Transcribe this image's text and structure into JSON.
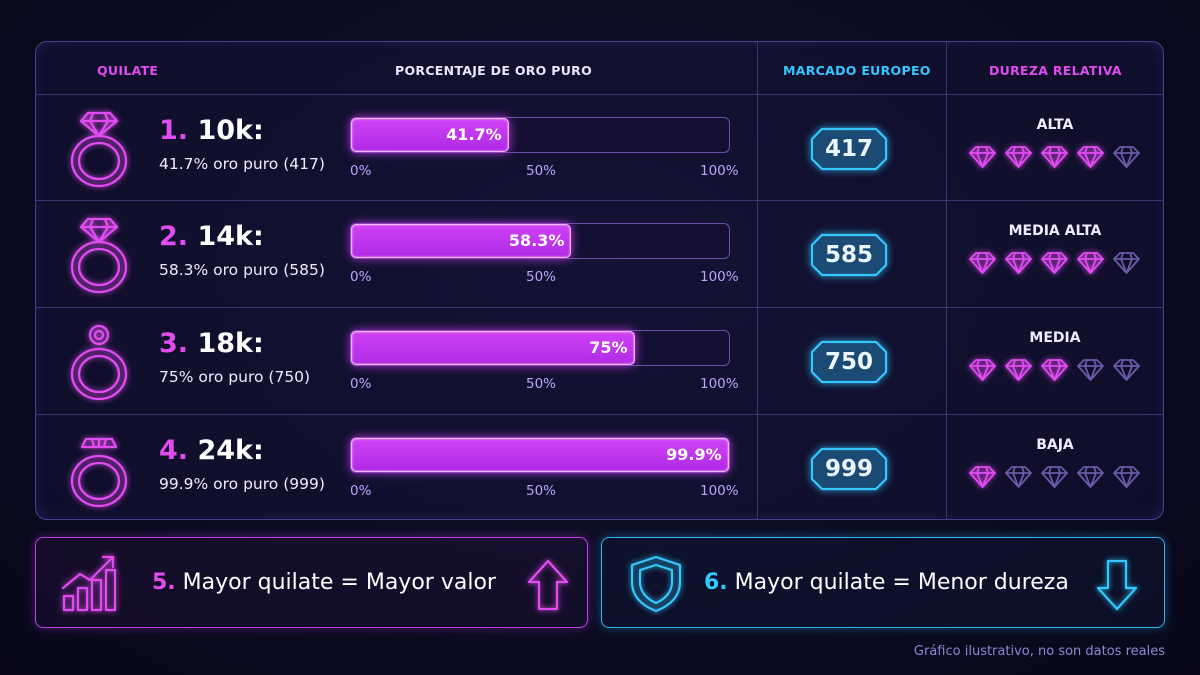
{
  "colors": {
    "pink": "#e04cf0",
    "cyan": "#35c8ff",
    "panel_border": "#4b3f86"
  },
  "header": {
    "col1": "QUILATE",
    "col2": "PORCENTAJE DE ORO PURO",
    "col3": "MARCADO EUROPEO",
    "col4": "DUREZA RELATIVA"
  },
  "axis_ticks": [
    "0%",
    "50%",
    "100%"
  ],
  "rows": [
    {
      "number": "1.",
      "title": "10k:",
      "subtitle": "41.7% oro puro (417)",
      "percent": 41.7,
      "percent_label": "41.7%",
      "mark": "417",
      "hardness_label": "ALTA",
      "hardness_stars": 4,
      "icon": "diamond-ring-icon"
    },
    {
      "number": "2.",
      "title": "14k:",
      "subtitle": "58.3% oro puro (585)",
      "percent": 58.3,
      "percent_label": "58.3%",
      "mark": "585",
      "hardness_label": "MEDIA ALTA",
      "hardness_stars": 4,
      "icon": "diamond-ring-icon"
    },
    {
      "number": "3.",
      "title": "18k:",
      "subtitle": "75% oro puro (750)",
      "percent": 75,
      "percent_label": "75%",
      "mark": "750",
      "hardness_label": "MEDIA",
      "hardness_stars": 3,
      "icon": "solitaire-ring-icon"
    },
    {
      "number": "4.",
      "title": "24k:",
      "subtitle": "99.9% oro puro (999)",
      "percent": 99.9,
      "percent_label": "99.9%",
      "mark": "999",
      "hardness_label": "BAJA",
      "hardness_stars": 1,
      "icon": "cluster-ring-icon"
    }
  ],
  "cards": [
    {
      "number": "5.",
      "text": "Mayor quilate = Mayor valor",
      "icon_left": "growth-chart-icon",
      "icon_right": "arrow-up-icon"
    },
    {
      "number": "6.",
      "text": "Mayor quilate = Menor dureza",
      "icon_left": "shield-icon",
      "icon_right": "arrow-down-icon"
    }
  ],
  "footnote": "Gráfico ilustrativo, no son datos reales"
}
